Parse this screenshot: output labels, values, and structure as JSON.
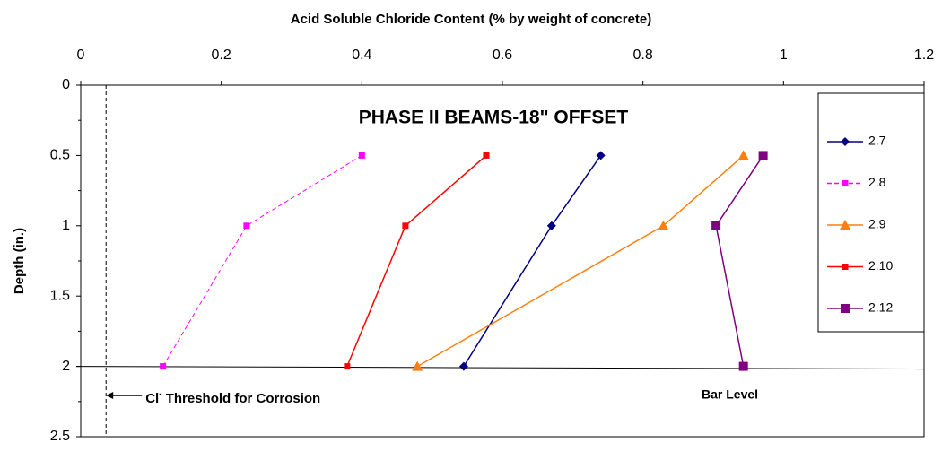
{
  "chart_data": {
    "type": "line",
    "title": "PHASE II BEAMS-18\" OFFSET",
    "x_label": "Acid Soluble Chloride Content (% by weight of concrete)",
    "y_label": "Depth (in.)",
    "depths": [
      0.5,
      1,
      2
    ],
    "series": [
      {
        "name": "2.7",
        "color": "#000080",
        "marker": "diamond",
        "dash": false,
        "values": [
          0.74,
          0.67,
          0.545
        ]
      },
      {
        "name": "2.8",
        "color": "#ff00ff",
        "marker": "square",
        "dash": true,
        "values": [
          0.4,
          0.236,
          0.117
        ]
      },
      {
        "name": "2.9",
        "color": "#ff7f0e",
        "marker": "triangle",
        "dash": false,
        "values": [
          0.943,
          0.829,
          0.479
        ]
      },
      {
        "name": "2.10",
        "color": "#ff0000",
        "marker": "square",
        "dash": false,
        "values": [
          0.577,
          0.462,
          0.379
        ]
      },
      {
        "name": "2.12",
        "color": "#800080",
        "marker": "square-large",
        "dash": false,
        "values": [
          0.971,
          0.904,
          0.943
        ]
      }
    ],
    "xlim": [
      0,
      1.2
    ],
    "xticks": [
      0,
      0.2,
      0.4,
      0.6,
      0.8,
      1,
      1.2
    ],
    "ylim": [
      0,
      2.5
    ],
    "yticks": [
      0,
      0.5,
      1,
      1.5,
      2,
      2.5
    ],
    "y_reversed": true,
    "threshold": {
      "value": 0.036,
      "label": "Cl",
      "superscript": "-",
      "rest": " Threshold for Corrosion"
    },
    "bar_level": {
      "value": 2,
      "label": "Bar Level"
    },
    "legend": "right"
  }
}
